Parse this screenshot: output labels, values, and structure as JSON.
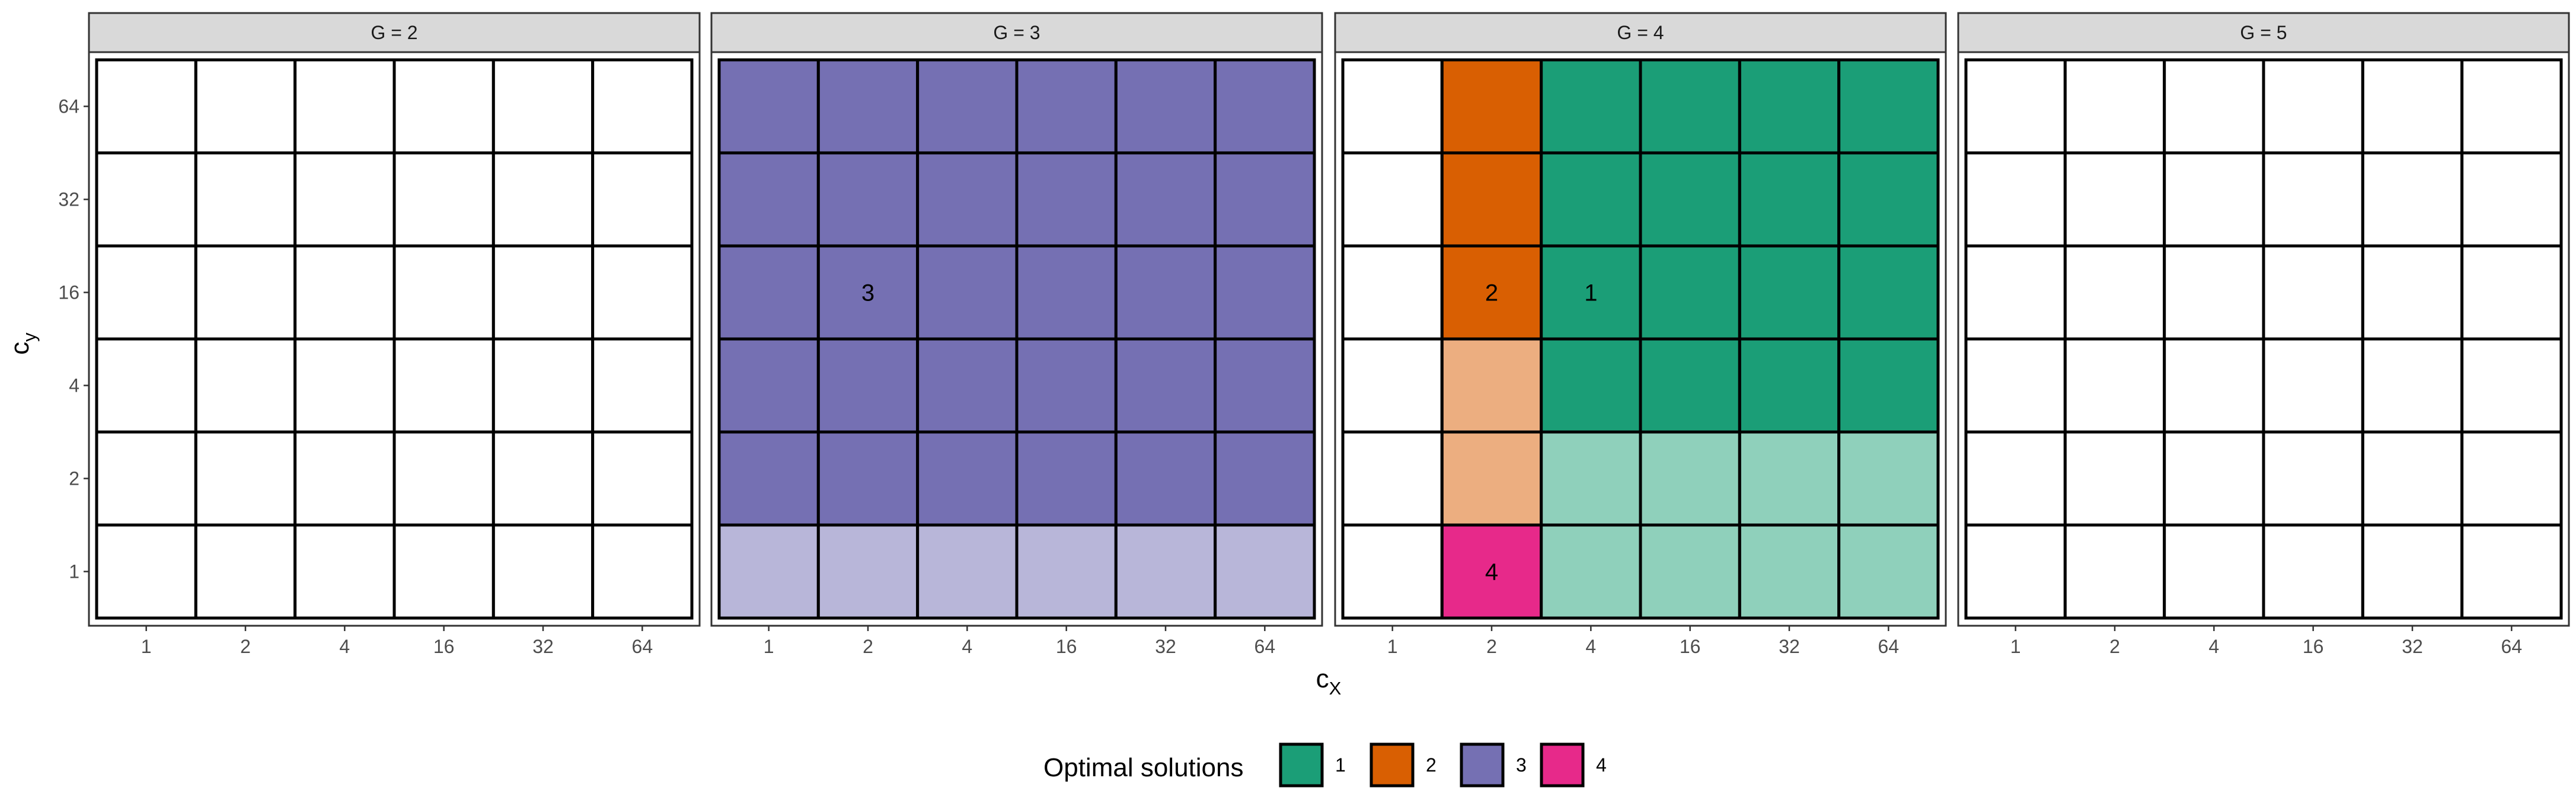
{
  "chart_data": {
    "type": "heatmap",
    "facet_variable": "G",
    "panels": [
      {
        "strip_label": "G = 2",
        "G": 2,
        "cells": []
      },
      {
        "strip_label": "G = 3",
        "G": 3,
        "cells": [
          {
            "x": 1,
            "y": 1,
            "solution": 3,
            "shade": "light"
          },
          {
            "x": 2,
            "y": 1,
            "solution": 3,
            "shade": "light"
          },
          {
            "x": 4,
            "y": 1,
            "solution": 3,
            "shade": "light"
          },
          {
            "x": 16,
            "y": 1,
            "solution": 3,
            "shade": "light"
          },
          {
            "x": 32,
            "y": 1,
            "solution": 3,
            "shade": "light"
          },
          {
            "x": 64,
            "y": 1,
            "solution": 3,
            "shade": "light"
          },
          {
            "x": 1,
            "y": 2,
            "solution": 3,
            "shade": "full"
          },
          {
            "x": 2,
            "y": 2,
            "solution": 3,
            "shade": "full"
          },
          {
            "x": 4,
            "y": 2,
            "solution": 3,
            "shade": "full"
          },
          {
            "x": 16,
            "y": 2,
            "solution": 3,
            "shade": "full"
          },
          {
            "x": 32,
            "y": 2,
            "solution": 3,
            "shade": "full"
          },
          {
            "x": 64,
            "y": 2,
            "solution": 3,
            "shade": "full"
          },
          {
            "x": 1,
            "y": 4,
            "solution": 3,
            "shade": "full"
          },
          {
            "x": 2,
            "y": 4,
            "solution": 3,
            "shade": "full"
          },
          {
            "x": 4,
            "y": 4,
            "solution": 3,
            "shade": "full"
          },
          {
            "x": 16,
            "y": 4,
            "solution": 3,
            "shade": "full"
          },
          {
            "x": 32,
            "y": 4,
            "solution": 3,
            "shade": "full"
          },
          {
            "x": 64,
            "y": 4,
            "solution": 3,
            "shade": "full"
          },
          {
            "x": 1,
            "y": 16,
            "solution": 3,
            "shade": "full"
          },
          {
            "x": 2,
            "y": 16,
            "solution": 3,
            "shade": "full",
            "label": "3"
          },
          {
            "x": 4,
            "y": 16,
            "solution": 3,
            "shade": "full"
          },
          {
            "x": 16,
            "y": 16,
            "solution": 3,
            "shade": "full"
          },
          {
            "x": 32,
            "y": 16,
            "solution": 3,
            "shade": "full"
          },
          {
            "x": 64,
            "y": 16,
            "solution": 3,
            "shade": "full"
          },
          {
            "x": 1,
            "y": 32,
            "solution": 3,
            "shade": "full"
          },
          {
            "x": 2,
            "y": 32,
            "solution": 3,
            "shade": "full"
          },
          {
            "x": 4,
            "y": 32,
            "solution": 3,
            "shade": "full"
          },
          {
            "x": 16,
            "y": 32,
            "solution": 3,
            "shade": "full"
          },
          {
            "x": 32,
            "y": 32,
            "solution": 3,
            "shade": "full"
          },
          {
            "x": 64,
            "y": 32,
            "solution": 3,
            "shade": "full"
          },
          {
            "x": 1,
            "y": 64,
            "solution": 3,
            "shade": "full"
          },
          {
            "x": 2,
            "y": 64,
            "solution": 3,
            "shade": "full"
          },
          {
            "x": 4,
            "y": 64,
            "solution": 3,
            "shade": "full"
          },
          {
            "x": 16,
            "y": 64,
            "solution": 3,
            "shade": "full"
          },
          {
            "x": 32,
            "y": 64,
            "solution": 3,
            "shade": "full"
          },
          {
            "x": 64,
            "y": 64,
            "solution": 3,
            "shade": "full"
          }
        ]
      },
      {
        "strip_label": "G = 4",
        "G": 4,
        "cells": [
          {
            "x": 2,
            "y": 1,
            "solution": 4,
            "shade": "full",
            "label": "4"
          },
          {
            "x": 4,
            "y": 1,
            "solution": 1,
            "shade": "light"
          },
          {
            "x": 16,
            "y": 1,
            "solution": 1,
            "shade": "light"
          },
          {
            "x": 32,
            "y": 1,
            "solution": 1,
            "shade": "light"
          },
          {
            "x": 64,
            "y": 1,
            "solution": 1,
            "shade": "light"
          },
          {
            "x": 2,
            "y": 2,
            "solution": 2,
            "shade": "light"
          },
          {
            "x": 4,
            "y": 2,
            "solution": 1,
            "shade": "light"
          },
          {
            "x": 16,
            "y": 2,
            "solution": 1,
            "shade": "light"
          },
          {
            "x": 32,
            "y": 2,
            "solution": 1,
            "shade": "light"
          },
          {
            "x": 64,
            "y": 2,
            "solution": 1,
            "shade": "light"
          },
          {
            "x": 2,
            "y": 4,
            "solution": 2,
            "shade": "light"
          },
          {
            "x": 4,
            "y": 4,
            "solution": 1,
            "shade": "full"
          },
          {
            "x": 16,
            "y": 4,
            "solution": 1,
            "shade": "full"
          },
          {
            "x": 32,
            "y": 4,
            "solution": 1,
            "shade": "full"
          },
          {
            "x": 64,
            "y": 4,
            "solution": 1,
            "shade": "full"
          },
          {
            "x": 2,
            "y": 16,
            "solution": 2,
            "shade": "full",
            "label": "2"
          },
          {
            "x": 4,
            "y": 16,
            "solution": 1,
            "shade": "full",
            "label": "1"
          },
          {
            "x": 16,
            "y": 16,
            "solution": 1,
            "shade": "full"
          },
          {
            "x": 32,
            "y": 16,
            "solution": 1,
            "shade": "full"
          },
          {
            "x": 64,
            "y": 16,
            "solution": 1,
            "shade": "full"
          },
          {
            "x": 2,
            "y": 32,
            "solution": 2,
            "shade": "full"
          },
          {
            "x": 4,
            "y": 32,
            "solution": 1,
            "shade": "full"
          },
          {
            "x": 16,
            "y": 32,
            "solution": 1,
            "shade": "full"
          },
          {
            "x": 32,
            "y": 32,
            "solution": 1,
            "shade": "full"
          },
          {
            "x": 64,
            "y": 32,
            "solution": 1,
            "shade": "full"
          },
          {
            "x": 2,
            "y": 64,
            "solution": 2,
            "shade": "full"
          },
          {
            "x": 4,
            "y": 64,
            "solution": 1,
            "shade": "full"
          },
          {
            "x": 16,
            "y": 64,
            "solution": 1,
            "shade": "full"
          },
          {
            "x": 32,
            "y": 64,
            "solution": 1,
            "shade": "full"
          },
          {
            "x": 64,
            "y": 64,
            "solution": 1,
            "shade": "full"
          }
        ]
      },
      {
        "strip_label": "G = 5",
        "G": 5,
        "cells": []
      }
    ],
    "x_categories": [
      "1",
      "2",
      "4",
      "16",
      "32",
      "64"
    ],
    "y_categories": [
      "1",
      "2",
      "4",
      "16",
      "32",
      "64"
    ],
    "xlabel": "c",
    "xlabel_sub": "X",
    "ylabel": "c",
    "ylabel_sub": "y",
    "legend": {
      "title": "Optimal solutions",
      "position": "bottom",
      "entries": [
        {
          "label": "1",
          "solution": 1
        },
        {
          "label": "2",
          "solution": 2
        },
        {
          "label": "3",
          "solution": 3
        },
        {
          "label": "4",
          "solution": 4
        }
      ]
    },
    "colors": {
      "1": {
        "full": "#1b9e77",
        "light": "#8fd0bb"
      },
      "2": {
        "full": "#d95f02",
        "light": "#ecae80"
      },
      "3": {
        "full": "#7570b3",
        "light": "#b8b6d9"
      },
      "4": {
        "full": "#e7298a",
        "light": "#f394c4"
      },
      "empty": "#ffffff",
      "grid": "#000000",
      "strip_fill": "#d9d9d9",
      "panel_border": "#333333",
      "tick_text": "#4d4d4d"
    }
  }
}
